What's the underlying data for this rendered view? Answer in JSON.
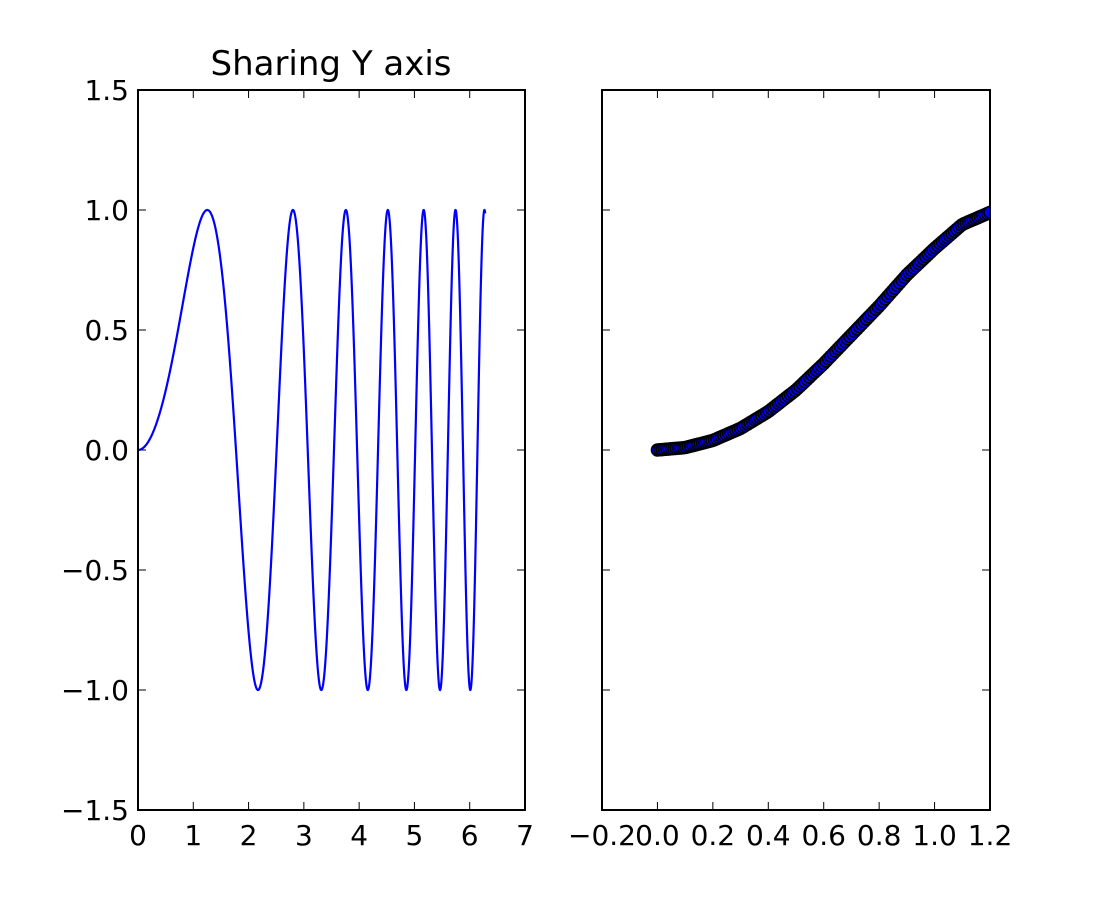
{
  "chart_data": [
    {
      "type": "line",
      "title": "Sharing Y axis",
      "xlabel": "",
      "ylabel": "",
      "xlim": [
        0,
        7
      ],
      "ylim": [
        -1.5,
        1.5
      ],
      "xticks": [
        "0",
        "1",
        "2",
        "3",
        "4",
        "5",
        "6",
        "7"
      ],
      "yticks": [
        "−1.5",
        "−1.0",
        "−0.5",
        "0.0",
        "0.5",
        "1.0",
        "1.5"
      ],
      "grid": false,
      "series": [
        {
          "function": "y = sin(x^2)",
          "x_range": [
            0,
            6.28
          ],
          "color": "#0000ff"
        }
      ]
    },
    {
      "type": "scatter",
      "title": "",
      "xlabel": "",
      "ylabel": "",
      "xlim": [
        -0.2,
        1.2
      ],
      "ylim": [
        -1.5,
        1.5
      ],
      "xticks": [
        "−0.2",
        "0.0",
        "0.2",
        "0.4",
        "0.6",
        "0.8",
        "1.0",
        "1.2"
      ],
      "yticks": [],
      "sharey": true,
      "grid": false,
      "series": [
        {
          "function": "x = t/(2π), y = sin(t^2) sampled to the same range as the left panel, visible points from (0,0) up to (1.2, 0.99)",
          "x": [
            0.0,
            0.1,
            0.2,
            0.3,
            0.4,
            0.5,
            0.6,
            0.7,
            0.8,
            0.9,
            1.0,
            1.1,
            1.2
          ],
          "y": [
            0.0,
            0.01,
            0.04,
            0.09,
            0.16,
            0.25,
            0.36,
            0.48,
            0.6,
            0.73,
            0.84,
            0.94,
            0.99
          ],
          "marker": "circle",
          "facecolor": "#0000ff",
          "edgecolor": "#000000"
        }
      ]
    }
  ]
}
